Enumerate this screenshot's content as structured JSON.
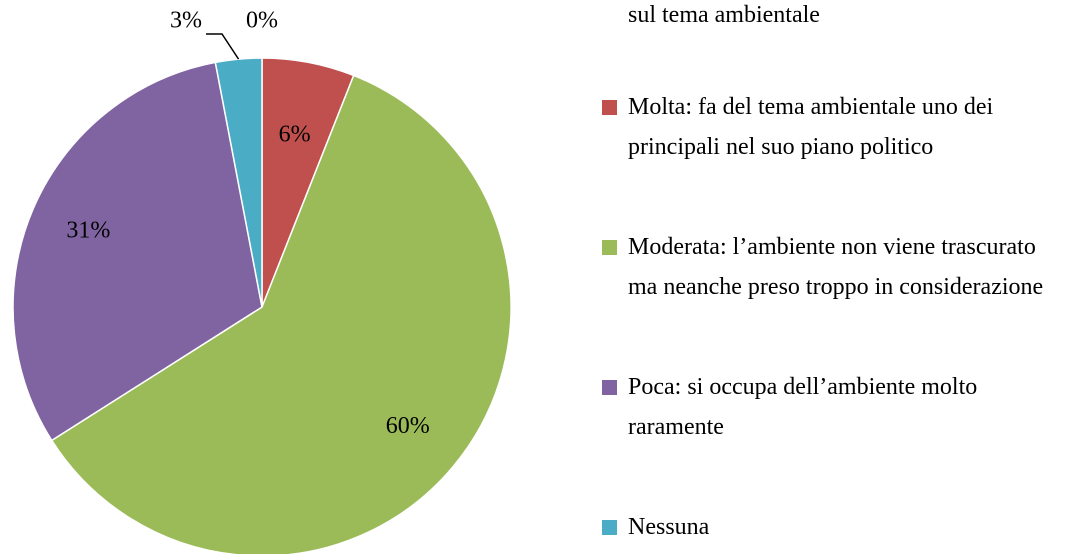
{
  "chart_data": {
    "type": "pie",
    "categories": [
      "sul tema ambientale",
      "Molta: fa del tema ambientale uno dei principali nel suo piano politico",
      "Moderata: l’ambiente non viene trascurato ma neanche preso troppo in considerazione",
      "Poca: si occupa dell’ambiente molto raramente",
      "Nessuna"
    ],
    "values": [
      0,
      6,
      60,
      31,
      3
    ],
    "value_labels": [
      "0%",
      "6%",
      "60%",
      "31%",
      "3%"
    ],
    "colors": [
      "#4f81bd",
      "#c0504d",
      "#9bbb59",
      "#8064a2",
      "#4bacc6"
    ]
  }
}
